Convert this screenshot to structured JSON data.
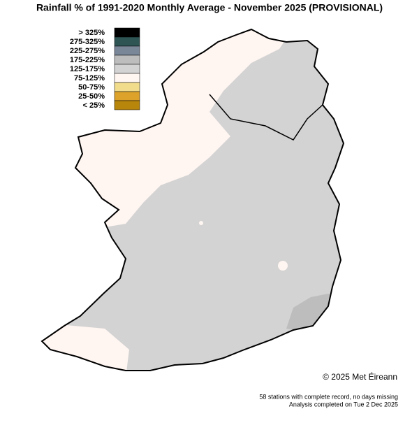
{
  "title": "Rainfall % of  1991-2020  Monthly Average - November 2025  (PROVISIONAL)",
  "legend": [
    {
      "label": "> 325%",
      "color": "#000000"
    },
    {
      "label": "275-325%",
      "color": "#2f5454"
    },
    {
      "label": "225-275%",
      "color": "#7a8799"
    },
    {
      "label": "175-225%",
      "color": "#bdbdbd"
    },
    {
      "label": "125-175%",
      "color": "#d3d3d3"
    },
    {
      "label": "75-125%",
      "color": "#fff5f1"
    },
    {
      "label": "50-75%",
      "color": "#f0dc8a"
    },
    {
      "label": "25-50%",
      "color": "#dca22a"
    },
    {
      "label": "< 25%",
      "color": "#b8860b"
    }
  ],
  "copyright": "© 2025 Met Éireann",
  "notes": [
    "58 stations with complete record, no days missing",
    "Analysis completed on Tue 2 Dec 2025"
  ]
}
